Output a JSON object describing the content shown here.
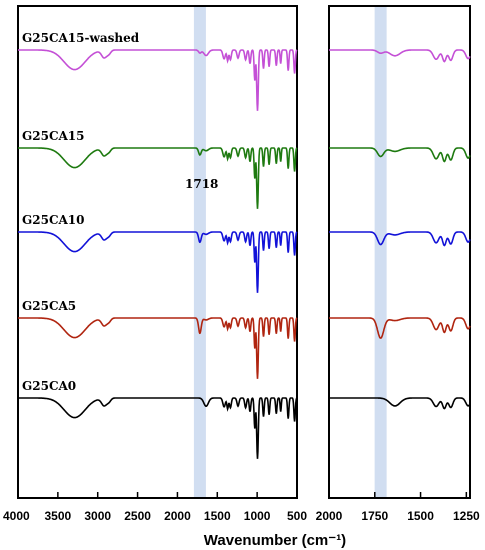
{
  "chart_data": {
    "type": "line",
    "xlabel": "Wavenumber (cm⁻¹)",
    "annotation": "1718",
    "highlight_center": 1718,
    "panels": [
      {
        "name": "full-range",
        "xlim": [
          4000,
          500
        ],
        "ticks": [
          "4000",
          "3500",
          "3000",
          "2500",
          "2000",
          "1500",
          "1000",
          "500"
        ],
        "tick_values": [
          4000,
          3500,
          3000,
          2500,
          2000,
          1500,
          1000,
          500
        ]
      },
      {
        "name": "zoom",
        "xlim": [
          2000,
          1230
        ],
        "ticks": [
          "2000",
          "1750",
          "1500",
          "1250"
        ],
        "tick_values": [
          2000,
          1750,
          1500,
          1250
        ]
      }
    ],
    "series": [
      {
        "name": "G25CA15-washed",
        "color": "#c450d6"
      },
      {
        "name": "G25CA15",
        "color": "#1e7a10"
      },
      {
        "name": "G25CA10",
        "color": "#1212d8"
      },
      {
        "name": "G25CA5",
        "color": "#b02510"
      },
      {
        "name": "G25CA0",
        "color": "#000000"
      }
    ]
  }
}
